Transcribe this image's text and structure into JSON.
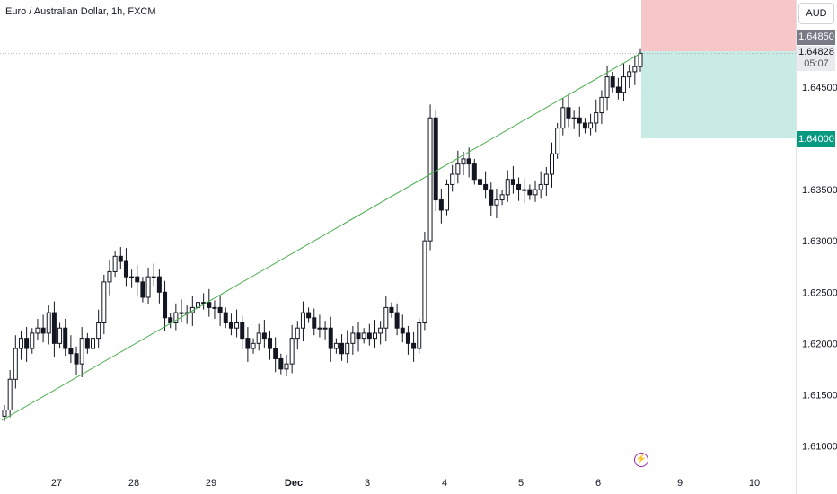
{
  "header": {
    "title": "Euro / Australian Dollar, 1h, FXCM"
  },
  "price_scale": {
    "unit": "AUD"
  },
  "tags": {
    "target": "1.64850",
    "current_price": "1.64828",
    "countdown": "05:07",
    "stop": "1.64000"
  },
  "colors": {
    "candle": "#131722",
    "trendline": "#4caf50",
    "target_zone": "#f7c6c9",
    "stop_zone": "#c8ebe5",
    "target_tag": "#787b86",
    "stop_tag": "#089981",
    "axis_text": "#131722"
  },
  "icons": {
    "flash": "lightning-icon"
  },
  "chart_data": {
    "type": "candlestick",
    "title": "Euro / Australian Dollar, 1h, FXCM",
    "y_unit": "AUD",
    "ylim": [
      1.6075,
      1.6535
    ],
    "y_ticks": [
      "1.64500",
      "1.63500",
      "1.63000",
      "1.62500",
      "1.62000",
      "1.61500",
      "1.61000"
    ],
    "x_ticks": [
      "27",
      "28",
      "29",
      "Dec",
      "3",
      "4",
      "5",
      "6",
      "9",
      "10"
    ],
    "grid": false,
    "closes": [
      1.6135,
      1.6165,
      1.6195,
      1.6205,
      1.6195,
      1.621,
      1.6215,
      1.621,
      1.623,
      1.62,
      1.6215,
      1.6195,
      1.619,
      1.618,
      1.6205,
      1.6195,
      1.6205,
      1.622,
      1.626,
      1.627,
      1.6285,
      1.628,
      1.6265,
      1.6265,
      1.626,
      1.6245,
      1.6265,
      1.6265,
      1.625,
      1.6225,
      1.622,
      1.623,
      1.623,
      1.623,
      1.6235,
      1.624,
      1.624,
      1.6235,
      1.6235,
      1.623,
      1.622,
      1.6215,
      1.622,
      1.6205,
      1.6195,
      1.62,
      1.621,
      1.6205,
      1.6195,
      1.6185,
      1.6175,
      1.618,
      1.6205,
      1.6215,
      1.623,
      1.6225,
      1.6215,
      1.6215,
      1.6215,
      1.6195,
      1.62,
      1.619,
      1.62,
      1.621,
      1.6205,
      1.621,
      1.6205,
      1.621,
      1.6215,
      1.6235,
      1.623,
      1.6215,
      1.621,
      1.62,
      1.6195,
      1.622,
      1.63,
      1.642,
      1.634,
      1.633,
      1.6355,
      1.6365,
      1.6375,
      1.638,
      1.6375,
      1.636,
      1.6355,
      1.635,
      1.6335,
      1.634,
      1.6345,
      1.636,
      1.6355,
      1.635,
      1.635,
      1.6345,
      1.635,
      1.6355,
      1.6365,
      1.6385,
      1.641,
      1.643,
      1.642,
      1.642,
      1.6415,
      1.641,
      1.6415,
      1.6425,
      1.644,
      1.646,
      1.645,
      1.6445,
      1.646,
      1.6465,
      1.647,
      1.6483
    ],
    "price_line": 1.64828,
    "trend_line": {
      "from": 1.6125,
      "to": 1.64828
    },
    "position": {
      "target": 1.6485,
      "stop": 1.64
    }
  }
}
